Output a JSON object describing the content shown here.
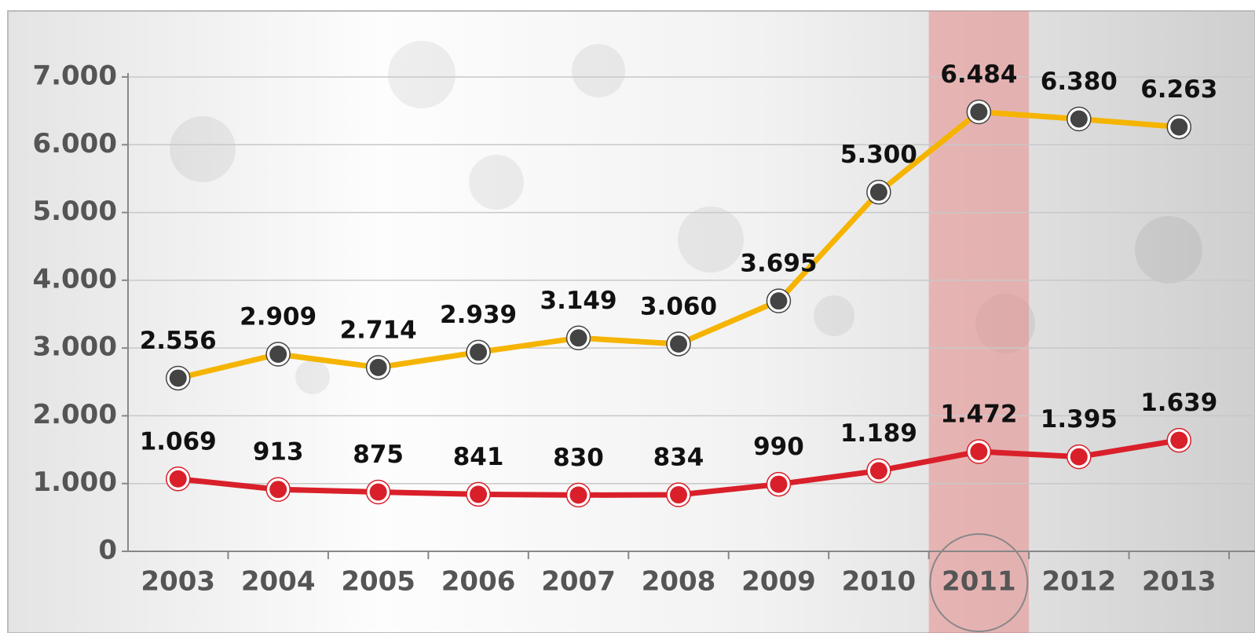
{
  "chart_data": {
    "type": "line",
    "categories": [
      "2003",
      "2004",
      "2005",
      "2006",
      "2007",
      "2008",
      "2009",
      "2010",
      "2011",
      "2012",
      "2013"
    ],
    "series": [
      {
        "color": "#f5b400",
        "marker_color": "#444444",
        "values": [
          2556,
          2909,
          2714,
          2939,
          3149,
          3060,
          3695,
          5300,
          6484,
          6380,
          6263
        ],
        "value_labels": [
          "2.556",
          "2.909",
          "2.714",
          "2.939",
          "3.149",
          "3.060",
          "3.695",
          "5.300",
          "6.484",
          "6.380",
          "6.263"
        ]
      },
      {
        "color": "#d9202a",
        "marker_color": "#d9202a",
        "values": [
          1069,
          913,
          875,
          841,
          830,
          834,
          990,
          1189,
          1472,
          1395,
          1639
        ],
        "value_labels": [
          "1.069",
          "913",
          "875",
          "841",
          "830",
          "834",
          "990",
          "1.189",
          "1.472",
          "1.395",
          "1.639"
        ]
      }
    ],
    "ylim": [
      0,
      7000
    ],
    "yticks": [
      0,
      {
        "value": 1000,
        "label": "1.000"
      },
      {
        "value": 2000,
        "label": "2.000"
      },
      {
        "value": 3000,
        "label": "3.000"
      },
      {
        "value": 4000,
        "label": "4.000"
      },
      {
        "value": 5000,
        "label": "5.000"
      },
      {
        "value": 6000,
        "label": "6.000"
      },
      {
        "value": 7000,
        "label": "7.000"
      }
    ],
    "grid": true,
    "highlight_category": "2011",
    "highlight_color": "#e88a8a"
  }
}
